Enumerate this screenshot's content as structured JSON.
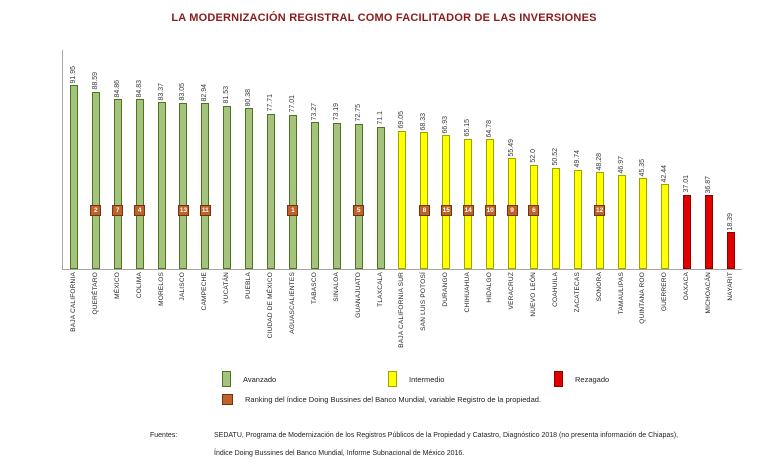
{
  "title": "LA MODERNIZACIÓN REGISTRAL COMO FACILITADOR DE LAS INVERSIONES",
  "chart_data": {
    "type": "bar",
    "title": "LA MODERNIZACIÓN REGISTRAL COMO FACILITADOR DE LAS INVERSIONES",
    "categories": [
      "BAJA CALIFORNIA",
      "QUERÉTARO",
      "MÉXICO",
      "COLIMA",
      "MORELOS",
      "JALISCO",
      "CAMPECHE",
      "YUCATÁN",
      "PUEBLA",
      "CIUDAD DE MÉXICO",
      "AGUASCALIENTES",
      "TABASCO",
      "SINALOA",
      "GUANAJUATO",
      "TLAXCALA",
      "BAJA CALIFORNIA SUR",
      "SAN LUIS POTOSÍ",
      "DURANGO",
      "CHIHUAHUA",
      "HIDALGO",
      "VERACRUZ",
      "NUEVO LEÓN",
      "COAHUILA",
      "ZACATECAS",
      "SONORA",
      "TAMAULIPAS",
      "QUINTANA ROO",
      "GUERRERO",
      "OAXACA",
      "MICHOACÁN",
      "NAYARIT"
    ],
    "values": [
      91.95,
      88.59,
      84.86,
      84.83,
      83.37,
      83.05,
      82.94,
      81.53,
      80.38,
      77.71,
      77.01,
      73.27,
      73.19,
      72.75,
      71.1,
      69.05,
      68.33,
      66.93,
      65.15,
      64.78,
      55.49,
      52.0,
      50.52,
      49.74,
      48.28,
      46.97,
      45.35,
      42.44,
      37.01,
      36.87,
      18.39
    ],
    "value_labels": [
      "91.95",
      "88.59",
      "84.86",
      "84.83",
      "83.37",
      "83.05",
      "82.94",
      "81.53",
      "80.38",
      "77.71",
      "77.01",
      "73.27",
      "73.19",
      "72.75",
      "71.1",
      "69.05",
      "68.33",
      "66.93",
      "65.15",
      "64.78",
      "55.49",
      "52.0",
      "50.52",
      "49.74",
      "48.28",
      "46.97",
      "45.35",
      "42.44",
      "37.01",
      "36.87",
      "18.39"
    ],
    "bar_categories": [
      "avanzado",
      "avanzado",
      "avanzado",
      "avanzado",
      "avanzado",
      "avanzado",
      "avanzado",
      "avanzado",
      "avanzado",
      "avanzado",
      "avanzado",
      "avanzado",
      "avanzado",
      "avanzado",
      "avanzado",
      "intermedio",
      "intermedio",
      "intermedio",
      "intermedio",
      "intermedio",
      "intermedio",
      "intermedio",
      "intermedio",
      "intermedio",
      "intermedio",
      "intermedio",
      "intermedio",
      "intermedio",
      "rezagado",
      "rezagado",
      "rezagado"
    ],
    "rankings": [
      null,
      2,
      7,
      4,
      null,
      13,
      11,
      null,
      null,
      null,
      1,
      null,
      null,
      5,
      null,
      null,
      8,
      15,
      14,
      10,
      9,
      6,
      null,
      null,
      12,
      null,
      null,
      null,
      null,
      null,
      null
    ],
    "ylim": [
      0,
      100
    ],
    "grid": false,
    "legend_position": "bottom"
  },
  "colors": {
    "title": "#8b1a1a",
    "avanzado": "#a4c47e",
    "avanzado_border": "#4e7321",
    "intermedio": "#ffff00",
    "intermedio_border": "#9da400",
    "rezagado": "#e00000",
    "rezagado_border": "#8b0000",
    "ranking": "#c0622b",
    "ranking_border": "#70350f"
  },
  "legend": {
    "items": [
      {
        "label": "Avanzado",
        "color_key": "avanzado"
      },
      {
        "label": "Intermedio",
        "color_key": "intermedio"
      },
      {
        "label": "Rezagado",
        "color_key": "rezagado"
      }
    ],
    "ranking_item": {
      "label": "Ranking del índice Doing Bussines del Banco Mundial, variable Registro de la propiedad.",
      "color_key": "ranking"
    }
  },
  "footer": {
    "label": "Fuentes:",
    "lines": [
      "SEDATU, Programa de Modernización de los Registros Públicos de la Propiedad y Catastro, Diagnóstico 2018 (no presenta información de Chiapas),",
      "Índice Doing Bussines del Banco Mundial, Informe Subnacional de México 2016."
    ]
  }
}
